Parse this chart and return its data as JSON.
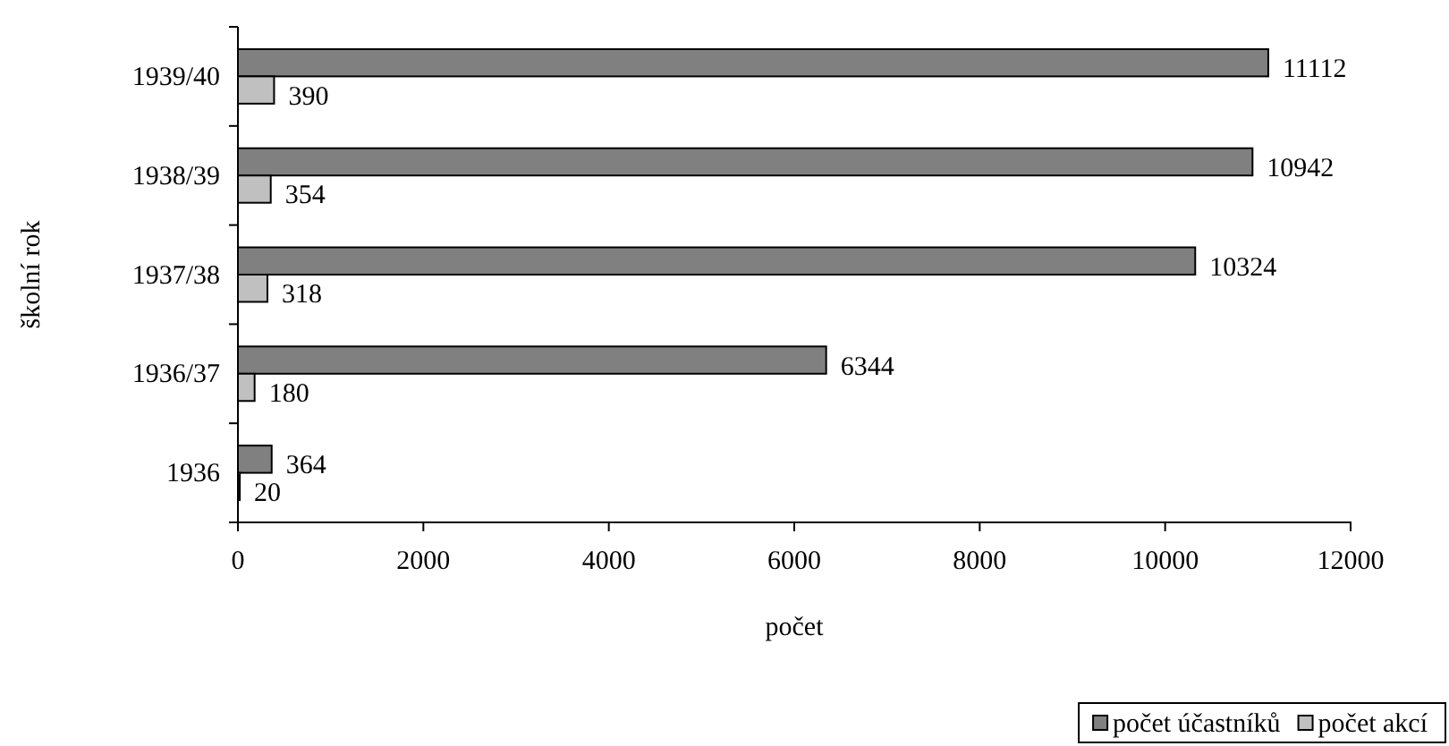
{
  "chart_data": {
    "type": "bar",
    "orientation": "horizontal",
    "xlabel": "počet",
    "ylabel": "školní rok",
    "categories": [
      "1939/40",
      "1938/39",
      "1937/38",
      "1936/37",
      "1936"
    ],
    "series": [
      {
        "name": "počet účastníků",
        "color": "#808080",
        "values": [
          11112,
          10942,
          10324,
          6344,
          364
        ]
      },
      {
        "name": "počet akcí",
        "color": "#c0c0c0",
        "values": [
          390,
          354,
          318,
          180,
          20
        ]
      }
    ],
    "xlim": [
      0,
      12000
    ],
    "xticks": [
      0,
      2000,
      4000,
      6000,
      8000,
      10000,
      12000
    ],
    "data_labels": true,
    "legend": "bottom right",
    "grid": false
  }
}
